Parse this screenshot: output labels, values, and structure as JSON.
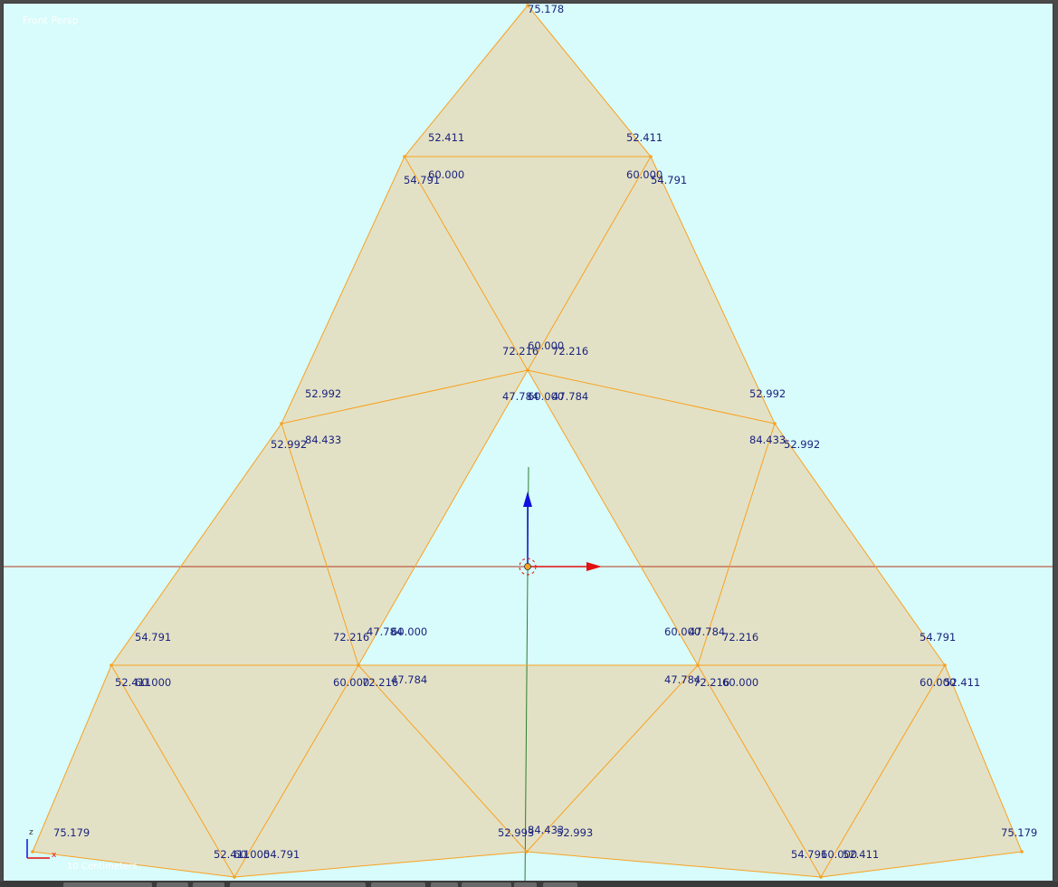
{
  "viewport": {
    "view_label": "Front Persp",
    "scale_label": "10 Centimeters",
    "axes": {
      "z": "z",
      "x": "x"
    },
    "colors": {
      "background": "#d8fbfb",
      "face": "#e3e1c5",
      "edge": "#f7a221",
      "annotation": "#1a237e",
      "x_axis": "#b23a1e",
      "z_axis": "#2e7d32",
      "gizmo_x": "#e01010",
      "gizmo_z": "#1010e0"
    }
  },
  "angle_labels": [
    "75.178",
    "52.411",
    "52.411",
    "60.000",
    "60.000",
    "54.791",
    "54.791",
    "60.000",
    "72.216",
    "72.216",
    "47.784",
    "60.000",
    "47.784",
    "52.992",
    "52.992",
    "52.992",
    "84.433",
    "84.433",
    "52.992",
    "54.791",
    "72.216",
    "47.784",
    "60.000",
    "60.000",
    "47.784",
    "72.216",
    "54.791",
    "52.411",
    "60.000",
    "60.000",
    "72.216",
    "47.784",
    "47.784",
    "72.216",
    "60.000",
    "60.000",
    "52.411",
    "75.179",
    "52.993",
    "84.433",
    "52.993",
    "75.179",
    "52.411",
    "60.000",
    "54.791",
    "54.791",
    "60.000",
    "52.411"
  ],
  "bottom_buttons": [
    "",
    "",
    "",
    "",
    "",
    "",
    "",
    "",
    "",
    "",
    ""
  ]
}
